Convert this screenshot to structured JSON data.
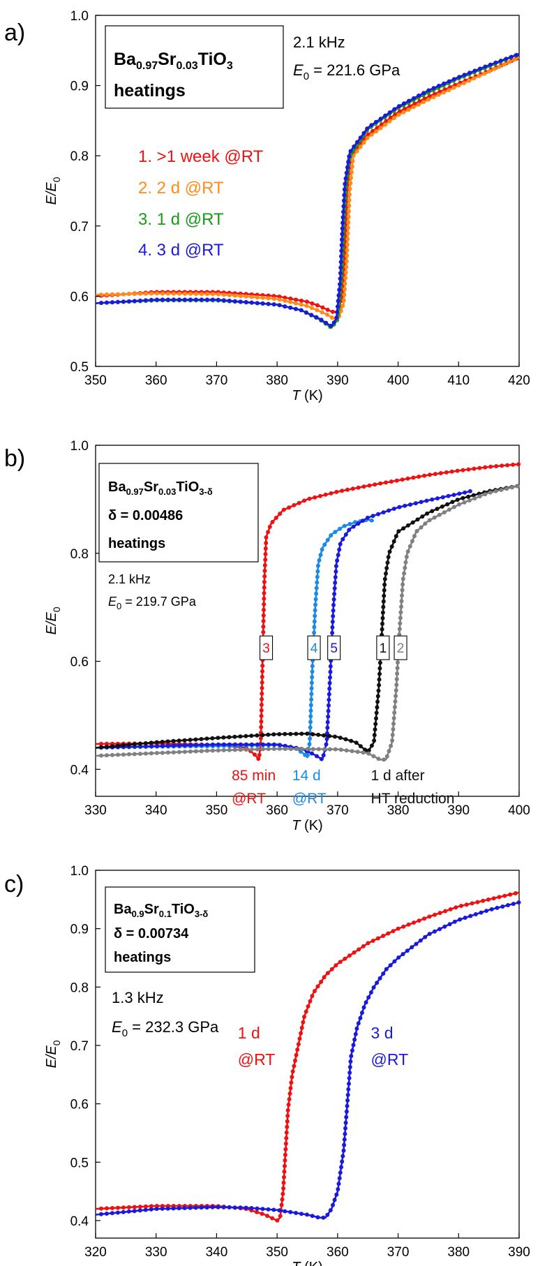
{
  "chart_data": [
    {
      "panel_label": "a)",
      "type": "line",
      "xlabel": "T",
      "xlabel_unit": " (K)",
      "ylabel_main": "E/E",
      "ylabel_sub": "0",
      "xlim": [
        350,
        420
      ],
      "ylim": [
        0.5,
        1.0
      ],
      "xticks": [
        350,
        360,
        370,
        380,
        390,
        400,
        410,
        420
      ],
      "yticks": [
        "0.5",
        "0.6",
        "0.7",
        "0.8",
        "0.9",
        "1.0"
      ],
      "box": {
        "formula_base": [
          "Ba",
          "Sr",
          "TiO"
        ],
        "formula_subs": [
          "0.97",
          "0.03",
          "3"
        ],
        "extra_line": "",
        "line3": "heatings"
      },
      "info": {
        "freq": "2.1 kHz",
        "e0_label": "E",
        "e0_sub": "0",
        "e0_value": " = 221.6 GPa"
      },
      "legend": [
        "1.  >1 week @RT",
        "2.  2 d @RT",
        "3.  1 d @RT",
        "4.  3 d @RT"
      ],
      "series": [
        {
          "name": "1",
          "color": "#ee1111",
          "points": [
            [
              350,
              0.6
            ],
            [
              360,
              0.606
            ],
            [
              370,
              0.606
            ],
            [
              380,
              0.6
            ],
            [
              385,
              0.592
            ],
            [
              387,
              0.586
            ],
            [
              389,
              0.578
            ],
            [
              390,
              0.577
            ],
            [
              390.8,
              0.6
            ],
            [
              391.2,
              0.65
            ],
            [
              391.6,
              0.75
            ],
            [
              392.2,
              0.8
            ],
            [
              395,
              0.83
            ],
            [
              400,
              0.862
            ],
            [
              405,
              0.884
            ],
            [
              410,
              0.903
            ],
            [
              415,
              0.921
            ],
            [
              420,
              0.94
            ]
          ]
        },
        {
          "name": "2",
          "color": "#ff8c1a",
          "points": [
            [
              350,
              0.602
            ],
            [
              360,
              0.604
            ],
            [
              370,
              0.603
            ],
            [
              380,
              0.596
            ],
            [
              385,
              0.586
            ],
            [
              388,
              0.575
            ],
            [
              390,
              0.565
            ],
            [
              391,
              0.59
            ],
            [
              391.5,
              0.65
            ],
            [
              392,
              0.75
            ],
            [
              392.6,
              0.8
            ],
            [
              395,
              0.826
            ],
            [
              400,
              0.858
            ],
            [
              405,
              0.88
            ],
            [
              410,
              0.9
            ],
            [
              415,
              0.92
            ],
            [
              420,
              0.94
            ]
          ]
        },
        {
          "name": "3",
          "color": "#1a9a1a",
          "points": [
            [
              350,
              0.59
            ],
            [
              360,
              0.594
            ],
            [
              370,
              0.594
            ],
            [
              380,
              0.588
            ],
            [
              384,
              0.58
            ],
            [
              387,
              0.567
            ],
            [
              389,
              0.555
            ],
            [
              390,
              0.567
            ],
            [
              390.6,
              0.62
            ],
            [
              391,
              0.7
            ],
            [
              391.4,
              0.76
            ],
            [
              392,
              0.8
            ],
            [
              395,
              0.838
            ],
            [
              400,
              0.868
            ],
            [
              405,
              0.89
            ],
            [
              410,
              0.91
            ],
            [
              415,
              0.927
            ],
            [
              420,
              0.945
            ]
          ]
        },
        {
          "name": "4",
          "color": "#1a1add",
          "points": [
            [
              350,
              0.59
            ],
            [
              360,
              0.595
            ],
            [
              370,
              0.595
            ],
            [
              380,
              0.588
            ],
            [
              384,
              0.58
            ],
            [
              387,
              0.568
            ],
            [
              389,
              0.557
            ],
            [
              389.8,
              0.568
            ],
            [
              390.4,
              0.62
            ],
            [
              390.8,
              0.7
            ],
            [
              391.2,
              0.76
            ],
            [
              392,
              0.805
            ],
            [
              395,
              0.84
            ],
            [
              400,
              0.87
            ],
            [
              405,
              0.893
            ],
            [
              410,
              0.912
            ],
            [
              415,
              0.929
            ],
            [
              420,
              0.945
            ]
          ]
        }
      ],
      "curve_labels": []
    },
    {
      "panel_label": "b)",
      "type": "line",
      "xlabel": "T",
      "xlabel_unit": " (K)",
      "ylabel_main": "E/E",
      "ylabel_sub": "0",
      "xlim": [
        330,
        400
      ],
      "ylim": [
        0.35,
        1.0
      ],
      "xticks": [
        330,
        340,
        350,
        360,
        370,
        380,
        390,
        400
      ],
      "yticks": [
        "0.4",
        "0.6",
        "0.8",
        "1.0"
      ],
      "ytick_values": [
        0.4,
        0.6,
        0.8,
        1.0
      ],
      "box": {
        "formula_base": [
          "Ba",
          "Sr",
          "TiO"
        ],
        "formula_subs": [
          "0.97",
          "0.03",
          "3-δ"
        ],
        "extra_line": "δ  = 0.00486",
        "line3": "heatings"
      },
      "info": {
        "freq": "2.1 kHz",
        "e0_label": "E",
        "e0_sub": "0",
        "e0_value": " = 219.7 GPa"
      },
      "legend": [],
      "series": [
        {
          "name": "3",
          "color": "#ee1111",
          "points": [
            [
              330,
              0.447
            ],
            [
              340,
              0.448
            ],
            [
              350,
              0.445
            ],
            [
              355,
              0.44
            ],
            [
              356.5,
              0.425
            ],
            [
              357,
              0.418
            ],
            [
              357.3,
              0.45
            ],
            [
              357.6,
              0.6
            ],
            [
              357.9,
              0.75
            ],
            [
              358.2,
              0.83
            ],
            [
              359,
              0.855
            ],
            [
              361,
              0.88
            ],
            [
              365,
              0.9
            ],
            [
              370,
              0.914
            ],
            [
              375,
              0.925
            ],
            [
              380,
              0.935
            ],
            [
              385,
              0.945
            ],
            [
              390,
              0.953
            ],
            [
              395,
              0.96
            ],
            [
              400,
              0.965
            ]
          ]
        },
        {
          "name": "4",
          "color": "#1a8ae6",
          "points": [
            [
              330,
              0.44
            ],
            [
              340,
              0.442
            ],
            [
              350,
              0.443
            ],
            [
              360,
              0.445
            ],
            [
              363,
              0.44
            ],
            [
              364.5,
              0.428
            ],
            [
              365,
              0.422
            ],
            [
              365.4,
              0.45
            ],
            [
              365.8,
              0.58
            ],
            [
              366.3,
              0.7
            ],
            [
              366.8,
              0.78
            ],
            [
              367.5,
              0.81
            ],
            [
              369,
              0.835
            ],
            [
              371,
              0.85
            ],
            [
              373,
              0.858
            ],
            [
              375,
              0.862
            ],
            [
              376,
              0.86
            ]
          ]
        },
        {
          "name": "5",
          "color": "#1a1add",
          "points": [
            [
              330,
              0.44
            ],
            [
              340,
              0.443
            ],
            [
              350,
              0.446
            ],
            [
              360,
              0.446
            ],
            [
              364,
              0.438
            ],
            [
              366,
              0.428
            ],
            [
              367.5,
              0.418
            ],
            [
              368.2,
              0.45
            ],
            [
              368.8,
              0.58
            ],
            [
              369.3,
              0.7
            ],
            [
              369.8,
              0.78
            ],
            [
              370.5,
              0.82
            ],
            [
              372,
              0.845
            ],
            [
              375,
              0.866
            ],
            [
              380,
              0.885
            ],
            [
              385,
              0.898
            ],
            [
              390,
              0.91
            ],
            [
              392,
              0.915
            ]
          ]
        },
        {
          "name": "1",
          "color": "#111111",
          "points": [
            [
              330,
              0.44
            ],
            [
              340,
              0.45
            ],
            [
              350,
              0.458
            ],
            [
              360,
              0.465
            ],
            [
              365,
              0.466
            ],
            [
              370,
              0.46
            ],
            [
              373,
              0.45
            ],
            [
              375,
              0.432
            ],
            [
              376,
              0.45
            ],
            [
              376.8,
              0.55
            ],
            [
              377.3,
              0.65
            ],
            [
              377.8,
              0.75
            ],
            [
              378.5,
              0.8
            ],
            [
              380,
              0.84
            ],
            [
              385,
              0.875
            ],
            [
              390,
              0.9
            ],
            [
              395,
              0.915
            ],
            [
              400,
              0.925
            ]
          ]
        },
        {
          "name": "2",
          "color": "#808080",
          "points": [
            [
              330,
              0.425
            ],
            [
              340,
              0.43
            ],
            [
              350,
              0.435
            ],
            [
              360,
              0.438
            ],
            [
              370,
              0.437
            ],
            [
              375,
              0.43
            ],
            [
              377,
              0.418
            ],
            [
              378,
              0.418
            ],
            [
              379,
              0.45
            ],
            [
              379.7,
              0.55
            ],
            [
              380.2,
              0.65
            ],
            [
              380.8,
              0.75
            ],
            [
              381.5,
              0.8
            ],
            [
              383,
              0.84
            ],
            [
              385,
              0.86
            ],
            [
              390,
              0.89
            ],
            [
              395,
              0.912
            ],
            [
              400,
              0.925
            ]
          ]
        }
      ],
      "curve_labels": [
        {
          "text": "3",
          "x": 358.2,
          "y": 0.625,
          "color": "#ee1111"
        },
        {
          "text": "4",
          "x": 366.1,
          "y": 0.625,
          "color": "#1a8ae6"
        },
        {
          "text": "5",
          "x": 369.4,
          "y": 0.625,
          "color": "#1a1add"
        },
        {
          "text": "1",
          "x": 377.5,
          "y": 0.625,
          "color": "#111111"
        },
        {
          "text": "2",
          "x": 380.4,
          "y": 0.625,
          "color": "#808080"
        }
      ],
      "annotations": [
        {
          "lines": [
            "85 min",
            "@RT"
          ],
          "color": "#ee1111",
          "x": 352.5
        },
        {
          "lines": [
            "14 d",
            "@RT"
          ],
          "color": "#1a8ae6",
          "x": 362.5
        },
        {
          "lines": [
            "1 d after",
            "HT reduction"
          ],
          "color": "#111111",
          "x": 375.5
        }
      ]
    },
    {
      "panel_label": "c)",
      "type": "line",
      "xlabel": "T",
      "xlabel_unit": " (K)",
      "ylabel_main": "E/E",
      "ylabel_sub": "0",
      "xlim": [
        320,
        390
      ],
      "ylim": [
        0.37,
        1.0
      ],
      "xticks": [
        320,
        330,
        340,
        350,
        360,
        370,
        380,
        390
      ],
      "yticks": [
        "0.4",
        "0.5",
        "0.6",
        "0.7",
        "0.8",
        "0.9",
        "1.0"
      ],
      "ytick_values": [
        0.4,
        0.5,
        0.6,
        0.7,
        0.8,
        0.9,
        1.0
      ],
      "box": {
        "formula_base": [
          "Ba",
          "Sr",
          "TiO"
        ],
        "formula_subs": [
          "0.9",
          "0.1",
          "3-δ"
        ],
        "extra_line": "δ  = 0.00734",
        "line3": "heatings"
      },
      "info": {
        "freq": "1.3 kHz",
        "e0_label": "E",
        "e0_sub": "0",
        "e0_value": " = 232.3 GPa"
      },
      "legend": [],
      "series": [
        {
          "name": "1 d",
          "color": "#ee1111",
          "points": [
            [
              320,
              0.42
            ],
            [
              330,
              0.425
            ],
            [
              340,
              0.425
            ],
            [
              345,
              0.42
            ],
            [
              348,
              0.41
            ],
            [
              350,
              0.4
            ],
            [
              350.5,
              0.405
            ],
            [
              351,
              0.45
            ],
            [
              351.4,
              0.52
            ],
            [
              351.8,
              0.59
            ],
            [
              352.5,
              0.65
            ],
            [
              353.5,
              0.7
            ],
            [
              354.5,
              0.75
            ],
            [
              356,
              0.79
            ],
            [
              358,
              0.82
            ],
            [
              360,
              0.84
            ],
            [
              365,
              0.875
            ],
            [
              370,
              0.9
            ],
            [
              375,
              0.92
            ],
            [
              380,
              0.938
            ],
            [
              385,
              0.95
            ],
            [
              390,
              0.962
            ]
          ]
        },
        {
          "name": "3 d",
          "color": "#1a1add",
          "points": [
            [
              320,
              0.41
            ],
            [
              325,
              0.415
            ],
            [
              330,
              0.42
            ],
            [
              340,
              0.423
            ],
            [
              345,
              0.422
            ],
            [
              350,
              0.418
            ],
            [
              355,
              0.41
            ],
            [
              357,
              0.405
            ],
            [
              358,
              0.405
            ],
            [
              359,
              0.42
            ],
            [
              360,
              0.45
            ],
            [
              361,
              0.52
            ],
            [
              361.6,
              0.6
            ],
            [
              362.2,
              0.68
            ],
            [
              363.2,
              0.73
            ],
            [
              364.5,
              0.77
            ],
            [
              366,
              0.8
            ],
            [
              368,
              0.83
            ],
            [
              370,
              0.85
            ],
            [
              375,
              0.89
            ],
            [
              380,
              0.915
            ],
            [
              385,
              0.932
            ],
            [
              390,
              0.945
            ]
          ]
        }
      ],
      "curve_labels": [],
      "annotations": [
        {
          "lines": [
            "1 d",
            "@RT"
          ],
          "color": "#ee1111",
          "x": 343.5
        },
        {
          "lines": [
            "3 d",
            "@RT"
          ],
          "color": "#1a1add",
          "x": 365.5
        }
      ]
    }
  ]
}
